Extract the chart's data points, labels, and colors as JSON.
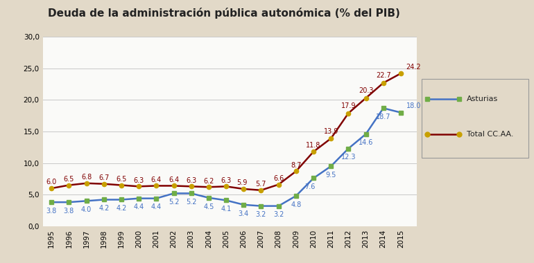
{
  "title": "Deuda de la administración pública autonómica (% del PIB)",
  "years": [
    1995,
    1996,
    1997,
    1998,
    1999,
    2000,
    2001,
    2002,
    2003,
    2004,
    2005,
    2006,
    2007,
    2008,
    2009,
    2010,
    2011,
    2012,
    2013,
    2014,
    2015
  ],
  "asturias": [
    3.8,
    3.8,
    4.0,
    4.2,
    4.2,
    4.4,
    4.4,
    5.2,
    5.2,
    4.5,
    4.1,
    3.4,
    3.2,
    3.2,
    4.8,
    7.6,
    9.5,
    12.3,
    14.6,
    18.7,
    18.0
  ],
  "total": [
    6.0,
    6.5,
    6.8,
    6.7,
    6.5,
    6.3,
    6.4,
    6.4,
    6.3,
    6.2,
    6.3,
    5.9,
    5.7,
    6.6,
    8.7,
    11.8,
    13.9,
    17.9,
    20.3,
    22.7,
    24.2
  ],
  "asturias_color": "#4472C4",
  "asturias_marker_color": "#70AD47",
  "total_color": "#800000",
  "total_marker_color": "#C8A000",
  "asturias_label": "Asturias",
  "total_label": "Total CC.AA.",
  "ylim": [
    0,
    30
  ],
  "yticks": [
    0.0,
    5.0,
    10.0,
    15.0,
    20.0,
    25.0,
    30.0
  ],
  "fig_background_color": "#E2D9C8",
  "plot_background_color": "#FAFAF8",
  "grid_color": "#C8C8C8",
  "label_fontsize": 7.0,
  "title_fontsize": 11,
  "tick_fontsize": 7.5
}
